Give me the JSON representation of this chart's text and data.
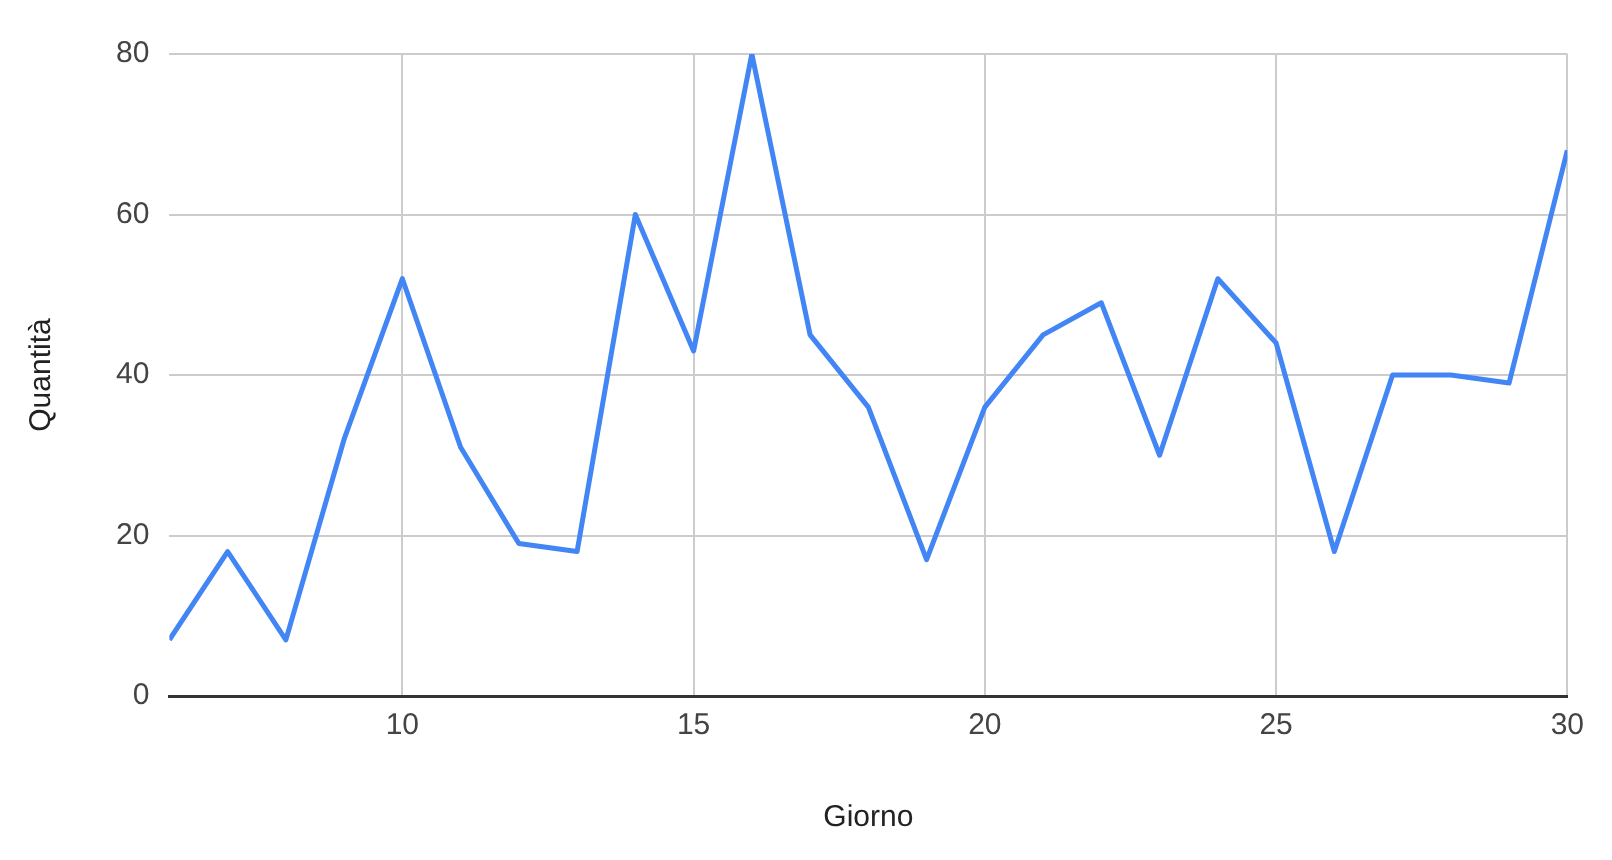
{
  "chart_data": {
    "type": "line",
    "xlabel": "Giorno",
    "ylabel": "Quantità",
    "x": [
      6,
      7,
      8,
      9,
      10,
      11,
      12,
      13,
      14,
      15,
      16,
      17,
      18,
      19,
      20,
      21,
      22,
      23,
      24,
      25,
      26,
      27,
      28,
      29,
      30
    ],
    "series": [
      {
        "color": "#4285f4",
        "values": [
          7,
          18,
          7,
          32,
          52,
          31,
          19,
          18,
          60,
          43,
          80,
          45,
          36,
          17,
          36,
          45,
          49,
          30,
          52,
          44,
          18,
          40,
          40,
          39,
          68
        ]
      }
    ],
    "xlim": [
      6,
      30
    ],
    "xticks": [
      10,
      15,
      20,
      25,
      30
    ],
    "ylim": [
      0,
      80
    ],
    "yticks": [
      0,
      20,
      40,
      60,
      80
    ],
    "grid": true,
    "legend": false,
    "marker": "none",
    "line_style": "solid"
  }
}
